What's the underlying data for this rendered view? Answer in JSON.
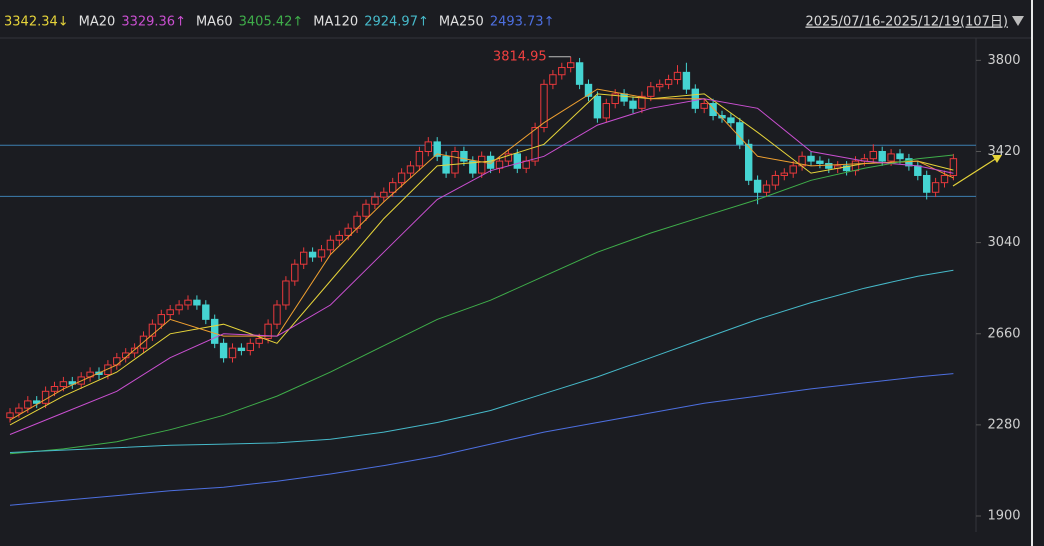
{
  "chart_data": {
    "type": "candlestick",
    "range_label": "2025/07/16-2025/12/19(107日)",
    "annotation": {
      "index": 63,
      "text": "3814.95"
    },
    "ylim": [
      1850,
      4010
    ],
    "yticks": [
      1900,
      2280,
      2660,
      3040,
      3420,
      3800
    ],
    "hlines": [
      3446,
      3233
    ],
    "up_color": "#e8393c",
    "down_color": "#45d4d2",
    "open": [
      2310,
      2330,
      2350,
      2380,
      2370,
      2420,
      2440,
      2460,
      2450,
      2480,
      2500,
      2490,
      2530,
      2560,
      2580,
      2600,
      2650,
      2700,
      2740,
      2760,
      2780,
      2800,
      2780,
      2720,
      2620,
      2560,
      2600,
      2590,
      2620,
      2640,
      2700,
      2780,
      2880,
      2950,
      3000,
      2980,
      3010,
      3050,
      3070,
      3100,
      3150,
      3200,
      3230,
      3250,
      3290,
      3330,
      3360,
      3420,
      3460,
      3400,
      3330,
      3420,
      3380,
      3330,
      3400,
      3350,
      3380,
      3410,
      3350,
      3380,
      3520,
      3700,
      3740,
      3770,
      3790,
      3700,
      3650,
      3560,
      3620,
      3660,
      3630,
      3600,
      3650,
      3690,
      3700,
      3720,
      3750,
      3680,
      3600,
      3620,
      3570,
      3560,
      3540,
      3450,
      3300,
      3250,
      3280,
      3320,
      3330,
      3360,
      3400,
      3380,
      3370,
      3350,
      3360,
      3340,
      3380,
      3390,
      3420,
      3380,
      3410,
      3390,
      3360,
      3320,
      3250,
      3290,
      3320
    ],
    "high": [
      2350,
      2370,
      2400,
      2400,
      2440,
      2460,
      2480,
      2480,
      2500,
      2520,
      2520,
      2550,
      2580,
      2600,
      2620,
      2670,
      2720,
      2760,
      2780,
      2800,
      2820,
      2820,
      2800,
      2740,
      2640,
      2620,
      2620,
      2640,
      2660,
      2720,
      2800,
      2900,
      2970,
      3020,
      3020,
      3030,
      3070,
      3090,
      3120,
      3170,
      3220,
      3250,
      3270,
      3310,
      3350,
      3380,
      3440,
      3480,
      3480,
      3420,
      3440,
      3440,
      3400,
      3420,
      3420,
      3400,
      3430,
      3430,
      3400,
      3540,
      3720,
      3760,
      3790,
      3814.95,
      3810,
      3720,
      3670,
      3640,
      3680,
      3680,
      3650,
      3670,
      3710,
      3720,
      3740,
      3780,
      3790,
      3700,
      3640,
      3640,
      3590,
      3580,
      3560,
      3470,
      3320,
      3300,
      3340,
      3350,
      3380,
      3420,
      3420,
      3400,
      3390,
      3380,
      3380,
      3400,
      3410,
      3450,
      3440,
      3430,
      3430,
      3410,
      3380,
      3340,
      3310,
      3340,
      3410
    ],
    "low": [
      2290,
      2310,
      2330,
      2350,
      2350,
      2400,
      2420,
      2430,
      2430,
      2460,
      2470,
      2470,
      2510,
      2540,
      2560,
      2580,
      2630,
      2680,
      2720,
      2740,
      2760,
      2760,
      2700,
      2600,
      2540,
      2540,
      2570,
      2570,
      2600,
      2620,
      2680,
      2760,
      2860,
      2930,
      2960,
      2960,
      2990,
      3030,
      3050,
      3080,
      3130,
      3180,
      3210,
      3230,
      3270,
      3310,
      3340,
      3400,
      3380,
      3310,
      3310,
      3360,
      3310,
      3310,
      3330,
      3330,
      3360,
      3330,
      3330,
      3360,
      3500,
      3680,
      3720,
      3750,
      3680,
      3630,
      3540,
      3540,
      3600,
      3610,
      3580,
      3580,
      3630,
      3670,
      3680,
      3700,
      3660,
      3580,
      3580,
      3550,
      3540,
      3520,
      3430,
      3280,
      3200,
      3230,
      3260,
      3300,
      3310,
      3340,
      3360,
      3350,
      3330,
      3330,
      3320,
      3320,
      3360,
      3370,
      3360,
      3360,
      3370,
      3340,
      3300,
      3220,
      3230,
      3270,
      3300
    ],
    "close": [
      2330,
      2350,
      2380,
      2370,
      2420,
      2440,
      2460,
      2450,
      2480,
      2500,
      2490,
      2530,
      2560,
      2580,
      2600,
      2650,
      2700,
      2740,
      2760,
      2780,
      2800,
      2780,
      2720,
      2620,
      2560,
      2600,
      2590,
      2620,
      2640,
      2700,
      2780,
      2880,
      2950,
      3000,
      2980,
      3010,
      3050,
      3070,
      3100,
      3150,
      3200,
      3230,
      3250,
      3290,
      3330,
      3360,
      3420,
      3460,
      3400,
      3330,
      3420,
      3380,
      3330,
      3400,
      3350,
      3380,
      3410,
      3350,
      3380,
      3520,
      3700,
      3740,
      3770,
      3790,
      3700,
      3650,
      3560,
      3620,
      3660,
      3630,
      3600,
      3650,
      3690,
      3700,
      3720,
      3750,
      3680,
      3600,
      3620,
      3570,
      3560,
      3540,
      3450,
      3300,
      3250,
      3280,
      3320,
      3330,
      3360,
      3400,
      3380,
      3370,
      3350,
      3360,
      3340,
      3380,
      3390,
      3420,
      3380,
      3410,
      3390,
      3360,
      3320,
      3250,
      3290,
      3320,
      3390
    ],
    "series": [
      {
        "color": "#e6d43a",
        "value_label": "3342.34↓",
        "x": [
          0,
          6,
          12,
          18,
          24,
          30,
          36,
          42,
          48,
          54,
          60,
          66,
          72,
          78,
          84,
          90,
          96,
          102,
          106
        ],
        "values": [
          2280,
          2400,
          2500,
          2660,
          2700,
          2620,
          2880,
          3140,
          3360,
          3380,
          3450,
          3660,
          3640,
          3660,
          3500,
          3330,
          3370,
          3380,
          3342.34
        ]
      },
      {
        "color": "#f0a030",
        "x": [
          0,
          6,
          12,
          18,
          24,
          30,
          36,
          42,
          48,
          54,
          60,
          66,
          72,
          78,
          84,
          90,
          96,
          102,
          106
        ],
        "values": [
          2300,
          2430,
          2530,
          2720,
          2650,
          2650,
          2990,
          3210,
          3410,
          3370,
          3540,
          3680,
          3640,
          3640,
          3400,
          3360,
          3370,
          3380,
          3310
        ]
      },
      {
        "name": "MA20",
        "color": "#c94fd0",
        "value_label": "3329.36↑",
        "x": [
          0,
          6,
          12,
          18,
          24,
          30,
          36,
          42,
          48,
          54,
          60,
          66,
          72,
          78,
          84,
          90,
          96,
          102,
          106
        ],
        "values": [
          2240,
          2330,
          2420,
          2560,
          2660,
          2650,
          2780,
          3000,
          3220,
          3340,
          3400,
          3530,
          3600,
          3640,
          3600,
          3420,
          3380,
          3360,
          3329.36
        ]
      },
      {
        "name": "MA60",
        "color": "#3fae4a",
        "value_label": "3405.42↑",
        "x": [
          0,
          6,
          12,
          18,
          24,
          30,
          36,
          42,
          48,
          54,
          60,
          66,
          72,
          78,
          84,
          90,
          96,
          102,
          106
        ],
        "values": [
          2160,
          2180,
          2210,
          2260,
          2320,
          2400,
          2500,
          2610,
          2720,
          2800,
          2900,
          3000,
          3080,
          3150,
          3220,
          3300,
          3350,
          3390,
          3405.42
        ]
      },
      {
        "name": "MA120",
        "color": "#46b9c9",
        "value_label": "2924.97↑",
        "x": [
          0,
          6,
          12,
          18,
          24,
          30,
          36,
          42,
          48,
          54,
          60,
          66,
          72,
          78,
          84,
          90,
          96,
          102,
          106
        ],
        "values": [
          2165,
          2175,
          2185,
          2195,
          2200,
          2205,
          2220,
          2250,
          2290,
          2340,
          2410,
          2480,
          2560,
          2640,
          2720,
          2790,
          2850,
          2900,
          2924.97
        ]
      },
      {
        "name": "MA250",
        "color": "#4d6fe0",
        "value_label": "2493.73↑",
        "x": [
          0,
          6,
          12,
          18,
          24,
          30,
          36,
          42,
          48,
          54,
          60,
          66,
          72,
          78,
          84,
          90,
          96,
          102,
          106
        ],
        "values": [
          1945,
          1965,
          1985,
          2005,
          2020,
          2045,
          2075,
          2110,
          2150,
          2200,
          2250,
          2290,
          2330,
          2370,
          2400,
          2430,
          2455,
          2480,
          2493.73
        ]
      }
    ]
  }
}
